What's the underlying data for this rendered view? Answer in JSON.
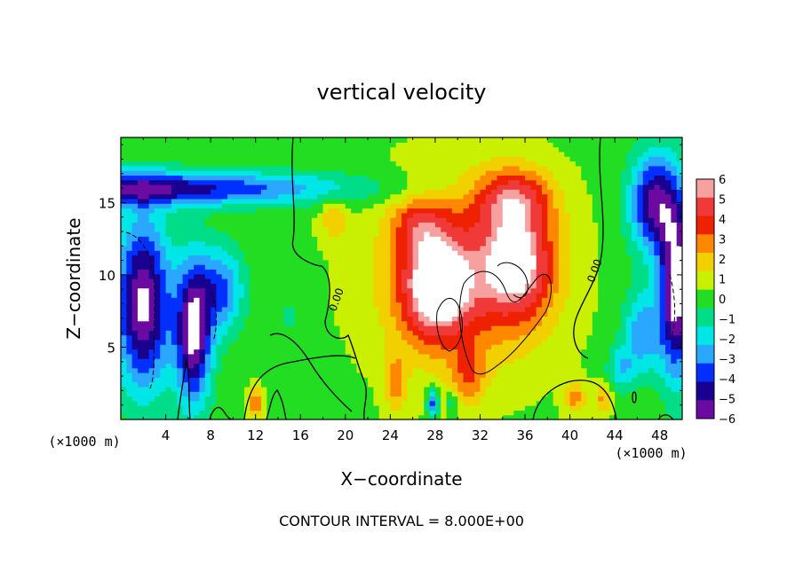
{
  "chart_data": {
    "type": "heatmap",
    "title": "vertical velocity",
    "xlabel": "X−coordinate",
    "ylabel": "Z−coordinate",
    "x_unit_left": "(×1000 m)",
    "x_unit_right": "(×1000 m)",
    "footer": "CONTOUR INTERVAL = 8.000E+00",
    "xlim": [
      0,
      50
    ],
    "ylim": [
      0,
      19.5
    ],
    "x_ticks": [
      4,
      8,
      12,
      16,
      20,
      24,
      28,
      32,
      36,
      40,
      44,
      48
    ],
    "x_tick_labels": [
      "4",
      "8",
      "12",
      "16",
      "20",
      "24",
      "28",
      "32",
      "36",
      "40",
      "44",
      "48"
    ],
    "y_ticks": [
      5,
      10,
      15
    ],
    "y_tick_labels": [
      "5",
      "10",
      "15"
    ],
    "colorbar": {
      "ticks": [
        6,
        5,
        4,
        3,
        2,
        1,
        0,
        -1,
        -2,
        -3,
        -4,
        -5,
        -6
      ],
      "tick_labels": [
        "6",
        "5",
        "4",
        "3",
        "2",
        "1",
        "0",
        "−1",
        "−2",
        "−3",
        "−4",
        "−5",
        "−6"
      ],
      "colors": [
        "#f7a0a0",
        "#f03a3a",
        "#ee2200",
        "#ff8800",
        "#f2d000",
        "#c8f000",
        "#22dd22",
        "#00dd88",
        "#00e6e6",
        "#2aa8ff",
        "#0030ff",
        "#1a0090",
        "#6a0aa0"
      ]
    },
    "contour_labels": [
      {
        "text": "0.00",
        "x": 19.5,
        "z": 8.2
      },
      {
        "text": "0.00",
        "x": 42.5,
        "z": 10.2
      }
    ],
    "fields": [
      {
        "x": 2.0,
        "z": 16.0,
        "sx": 18.0,
        "sz": 1.2,
        "v": -5.5
      },
      {
        "x": 2.0,
        "z": 8.0,
        "sx": 2.5,
        "sz": 6.0,
        "v": -7.0
      },
      {
        "x": 6.5,
        "z": 6.0,
        "sx": 1.6,
        "sz": 5.0,
        "v": -7.0
      },
      {
        "x": 9.0,
        "z": 9.0,
        "sx": 2.0,
        "sz": 3.0,
        "v": -4.0
      },
      {
        "x": 47.5,
        "z": 15.0,
        "sx": 2.2,
        "sz": 3.5,
        "v": -6.0
      },
      {
        "x": 49.5,
        "z": 9.0,
        "sx": 1.5,
        "sz": 6.0,
        "v": -7.5
      },
      {
        "x": 46.5,
        "z": 6.0,
        "sx": 1.8,
        "sz": 3.0,
        "v": -3.5
      },
      {
        "x": 44.5,
        "z": 3.5,
        "sx": 1.2,
        "sz": 1.5,
        "v": -2.5
      },
      {
        "x": 30.5,
        "z": 10.0,
        "sx": 7.0,
        "sz": 6.0,
        "v": 3.8
      },
      {
        "x": 28.0,
        "z": 9.0,
        "sx": 3.0,
        "sz": 3.5,
        "v": 5.0
      },
      {
        "x": 35.5,
        "z": 11.0,
        "sx": 3.2,
        "sz": 4.0,
        "v": 5.0
      },
      {
        "x": 35.0,
        "z": 15.5,
        "sx": 3.5,
        "sz": 2.0,
        "v": 3.5
      },
      {
        "x": 26.5,
        "z": 13.5,
        "sx": 2.5,
        "sz": 2.0,
        "v": 2.5
      },
      {
        "x": 19.0,
        "z": 14.0,
        "sx": 1.2,
        "sz": 1.5,
        "v": 2.0
      },
      {
        "x": 31.0,
        "z": 3.0,
        "sx": 1.5,
        "sz": 2.0,
        "v": 2.5
      },
      {
        "x": 12.0,
        "z": 1.2,
        "sx": 0.6,
        "sz": 1.0,
        "v": 3.5
      },
      {
        "x": 24.5,
        "z": 2.5,
        "sx": 1.0,
        "sz": 2.0,
        "v": 2.5
      },
      {
        "x": 40.5,
        "z": 1.5,
        "sx": 1.0,
        "sz": 1.2,
        "v": 2.5
      },
      {
        "x": 43.0,
        "z": 1.5,
        "sx": 0.8,
        "sz": 1.0,
        "v": 2.5
      },
      {
        "x": 15.0,
        "z": 7.0,
        "sx": 0.6,
        "sz": 1.0,
        "v": -1.5
      },
      {
        "x": 27.8,
        "z": 1.2,
        "sx": 0.5,
        "sz": 1.0,
        "v": -4.5
      },
      {
        "x": 29.5,
        "z": 1.2,
        "sx": 0.4,
        "sz": 0.8,
        "v": -2.5
      }
    ]
  }
}
